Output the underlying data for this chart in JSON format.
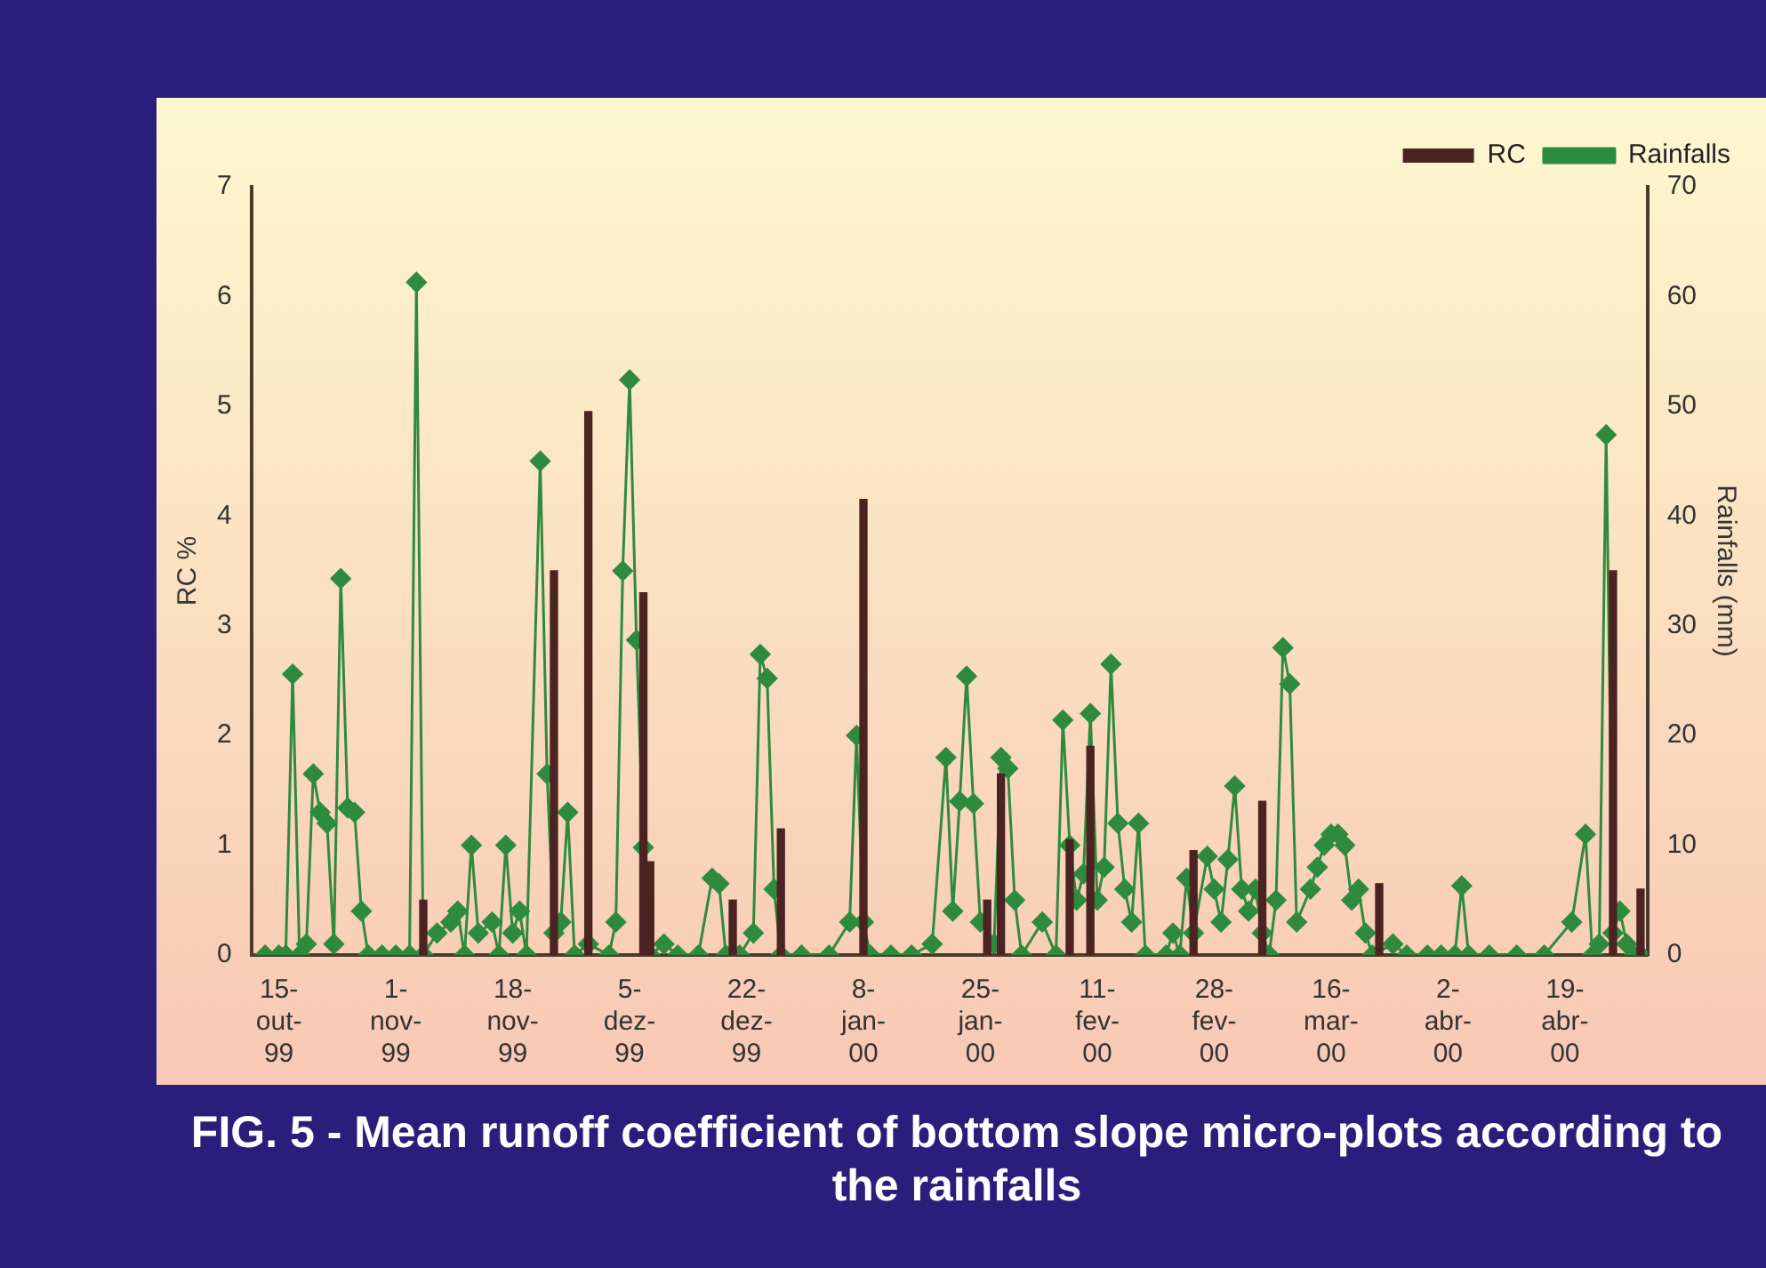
{
  "chart_data": {
    "type": "bar",
    "title": "FIG. 5 - Mean runoff coefficient of bottom slope micro-plots according to the rainfalls",
    "ylabel": "RC %",
    "y2label": "Rainfalls (mm)",
    "xlim": [
      "1999-10-11",
      "2000-05-01"
    ],
    "xticks": [
      {
        "value": "1999-10-15",
        "label": "15-out-99"
      },
      {
        "value": "1999-11-01",
        "label": "1-nov-99"
      },
      {
        "value": "1999-11-18",
        "label": "18-nov-99"
      },
      {
        "value": "1999-12-05",
        "label": "5-dez-99"
      },
      {
        "value": "1999-12-22",
        "label": "22-dez-99"
      },
      {
        "value": "2000-01-08",
        "label": "8-jan-00"
      },
      {
        "value": "2000-01-25",
        "label": "25-jan-00"
      },
      {
        "value": "2000-02-11",
        "label": "11-fev-00"
      },
      {
        "value": "2000-02-28",
        "label": "28-fev-00"
      },
      {
        "value": "2000-03-16",
        "label": "16-mar-00"
      },
      {
        "value": "2000-04-02",
        "label": "2-abr-00"
      },
      {
        "value": "2000-04-19",
        "label": "19-abr-00"
      }
    ],
    "ylim": [
      0,
      7
    ],
    "yticks": [
      0,
      1,
      2,
      3,
      4,
      5,
      6,
      7
    ],
    "y2lim": [
      0,
      70
    ],
    "y2ticks": [
      0,
      10,
      20,
      30,
      40,
      50,
      60,
      70
    ],
    "grid": false,
    "legend": "top right",
    "marker": "diamond",
    "series": [
      {
        "name": "RC",
        "color": "#4b2323",
        "x": [
          "1999-11-05",
          "1999-11-24",
          "1999-11-29",
          "1999-12-07",
          "1999-12-08",
          "1999-12-20",
          "1999-12-27",
          "2000-01-08",
          "2000-01-26",
          "2000-01-28",
          "2000-02-07",
          "2000-02-10",
          "2000-02-25",
          "2000-03-06",
          "2000-03-23",
          "2000-04-26",
          "2000-04-30"
        ],
        "values": [
          0.5,
          3.5,
          4.95,
          3.3,
          0.85,
          0.5,
          1.15,
          4.15,
          0.5,
          1.65,
          1.05,
          1.9,
          0.95,
          1.4,
          0.65,
          3.5,
          0.6
        ]
      },
      {
        "name": "Rainfalls",
        "type": "line",
        "axis": "y2",
        "color": "#2e8b3e",
        "x": [
          "1999-10-13",
          "1999-10-15",
          "1999-10-16",
          "1999-10-17",
          "1999-10-18",
          "1999-10-19",
          "1999-10-20",
          "1999-10-21",
          "1999-10-22",
          "1999-10-23",
          "1999-10-24",
          "1999-10-25",
          "1999-10-26",
          "1999-10-27",
          "1999-10-28",
          "1999-10-30",
          "1999-11-01",
          "1999-11-03",
          "1999-11-04",
          "1999-11-05",
          "1999-11-07",
          "1999-11-09",
          "1999-11-10",
          "1999-11-11",
          "1999-11-12",
          "1999-11-13",
          "1999-11-15",
          "1999-11-16",
          "1999-11-17",
          "1999-11-18",
          "1999-11-19",
          "1999-11-20",
          "1999-11-22",
          "1999-11-23",
          "1999-11-24",
          "1999-11-25",
          "1999-11-26",
          "1999-11-27",
          "1999-11-29",
          "1999-12-02",
          "1999-12-03",
          "1999-12-04",
          "1999-12-05",
          "1999-12-06",
          "1999-12-07",
          "1999-12-08",
          "1999-12-10",
          "1999-12-12",
          "1999-12-15",
          "1999-12-17",
          "1999-12-18",
          "1999-12-19",
          "1999-12-21",
          "1999-12-23",
          "1999-12-24",
          "1999-12-25",
          "1999-12-26",
          "1999-12-27",
          "1999-12-30",
          "2000-01-03",
          "2000-01-06",
          "2000-01-07",
          "2000-01-08",
          "2000-01-09",
          "2000-01-12",
          "2000-01-15",
          "2000-01-18",
          "2000-01-20",
          "2000-01-21",
          "2000-01-22",
          "2000-01-23",
          "2000-01-24",
          "2000-01-25",
          "2000-01-27",
          "2000-01-28",
          "2000-01-29",
          "2000-01-30",
          "2000-01-31",
          "2000-02-03",
          "2000-02-05",
          "2000-02-06",
          "2000-02-07",
          "2000-02-08",
          "2000-02-09",
          "2000-02-10",
          "2000-02-11",
          "2000-02-12",
          "2000-02-13",
          "2000-02-14",
          "2000-02-15",
          "2000-02-16",
          "2000-02-17",
          "2000-02-18",
          "2000-02-21",
          "2000-02-22",
          "2000-02-23",
          "2000-02-24",
          "2000-02-25",
          "2000-02-27",
          "2000-02-28",
          "2000-02-29",
          "2000-03-01",
          "2000-03-02",
          "2000-03-03",
          "2000-03-04",
          "2000-03-05",
          "2000-03-06",
          "2000-03-07",
          "2000-03-08",
          "2000-03-09",
          "2000-03-10",
          "2000-03-11",
          "2000-03-13",
          "2000-03-14",
          "2000-03-15",
          "2000-03-16",
          "2000-03-17",
          "2000-03-18",
          "2000-03-19",
          "2000-03-20",
          "2000-03-21",
          "2000-03-22",
          "2000-03-25",
          "2000-03-27",
          "2000-03-30",
          "2000-04-01",
          "2000-04-03",
          "2000-04-04",
          "2000-04-05",
          "2000-04-08",
          "2000-04-12",
          "2000-04-16",
          "2000-04-20",
          "2000-04-22",
          "2000-04-23",
          "2000-04-24",
          "2000-04-25",
          "2000-04-26",
          "2000-04-27",
          "2000-04-28",
          "2000-04-29",
          "2000-04-30"
        ],
        "values": [
          0,
          0,
          0,
          25.6,
          0,
          1,
          16.5,
          13,
          12,
          1,
          34.3,
          13.4,
          13,
          4,
          0,
          0,
          0,
          0,
          61.3,
          0,
          2,
          3,
          4,
          0,
          10,
          2,
          3,
          0,
          10,
          2,
          4,
          0,
          45,
          16.5,
          2,
          3,
          13,
          0,
          1,
          0,
          3,
          35,
          52.4,
          28.7,
          9.8,
          0,
          1,
          0,
          0,
          7,
          6.5,
          0,
          0,
          2,
          27.4,
          25.2,
          6,
          0,
          0,
          0,
          3,
          20,
          3,
          0,
          0,
          0,
          1,
          18,
          4,
          14,
          25.4,
          13.8,
          3,
          1,
          18,
          17,
          5,
          0,
          3,
          0,
          21.4,
          10,
          5,
          7.4,
          22,
          5,
          8,
          26.5,
          12,
          6,
          3,
          12,
          0,
          0,
          2,
          0,
          7,
          2,
          9,
          6,
          3,
          8.7,
          15.4,
          6,
          4,
          6,
          2,
          0,
          5,
          28,
          24.7,
          3,
          6,
          8,
          10,
          11,
          11,
          10,
          5,
          6,
          2,
          0,
          1,
          0,
          0,
          0,
          0,
          6.3,
          0,
          0,
          0,
          0,
          3,
          11,
          0,
          1,
          47.4,
          2,
          4,
          1,
          0,
          0
        ]
      }
    ]
  }
}
